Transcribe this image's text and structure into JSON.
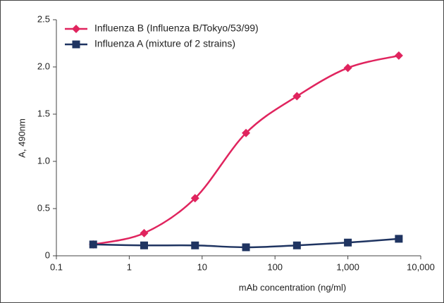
{
  "chart_data": {
    "type": "line",
    "xlabel": "mAb concentration (ng/ml)",
    "ylabel": "A, 490nm",
    "x": [
      0.32,
      1.6,
      8,
      40,
      200,
      1000,
      5000
    ],
    "series": [
      {
        "name": "Influenza B (Influenza B/Tokyo/53/99)",
        "color": "#e0245e",
        "marker": "diamond",
        "values": [
          0.12,
          0.24,
          0.61,
          1.3,
          1.69,
          1.99,
          2.12
        ]
      },
      {
        "name": "Influenza A (mixture of 2 strains)",
        "color": "#1f3461",
        "marker": "square",
        "values": [
          0.12,
          0.11,
          0.11,
          0.09,
          0.11,
          0.14,
          0.18
        ]
      }
    ],
    "xscale": "log",
    "xlim": [
      0.1,
      10000
    ],
    "xticks": [
      0.1,
      1,
      10,
      100,
      {
        "value": 1000,
        "label": "1,000"
      },
      {
        "value": 10000,
        "label": "10,000"
      }
    ],
    "ylim": [
      0,
      2.5
    ],
    "yticks": [
      0,
      0.5,
      {
        "value": 1,
        "label": "1.0"
      },
      1.5,
      {
        "value": 2,
        "label": "2.0"
      },
      2.5
    ],
    "grid": false,
    "legend": "upper left"
  }
}
